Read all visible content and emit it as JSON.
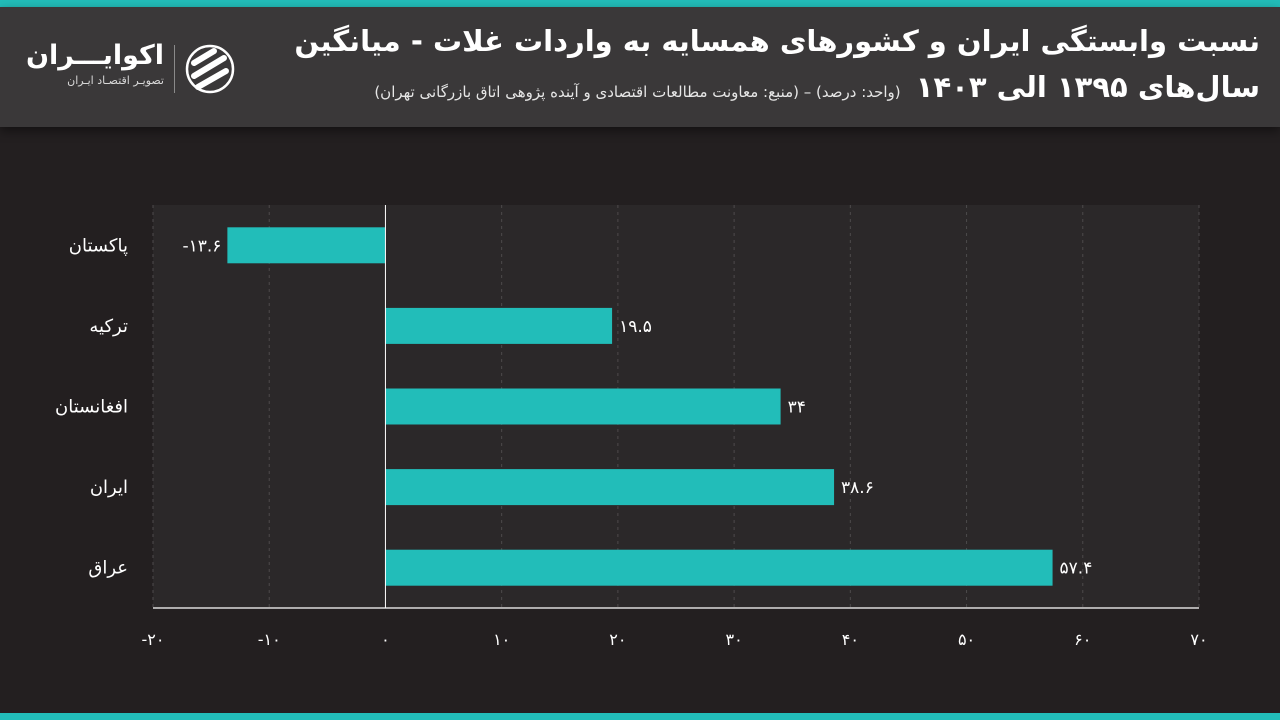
{
  "header": {
    "title_line1": "نسبت وابستگی ایران و کشورهای همسایه به واردات غلات - میانگین",
    "title_line2": "سال‌های ۱۳۹۵ الی ۱۴۰۳",
    "subtitle": "(واحد: درصد) – (منبع: معاونت مطالعات اقتصادی و آینده پژوهی اتاق بازرگانی تهران)"
  },
  "logo": {
    "name": "اکوایـــران",
    "tagline": "تصویـر اقتصـاد ایـران",
    "icon": "ecoiran-logo-icon"
  },
  "colors": {
    "bar": "#22bdb9",
    "background": "#231f20",
    "plot_background": "#2b2829",
    "header": "#3a3839",
    "grid": "#4d4a4b"
  },
  "chart_data": {
    "type": "bar",
    "orientation": "horizontal",
    "categories": [
      "پاکستان",
      "ترکیه",
      "افغانستان",
      "ایران",
      "عراق"
    ],
    "values": [
      -13.6,
      19.5,
      34,
      38.6,
      57.4
    ],
    "value_labels": [
      "-۱۳.۶",
      "۱۹.۵",
      "۳۴",
      "۳۸.۶",
      "۵۷.۴"
    ],
    "xlim": [
      -20,
      70
    ],
    "x_ticks": [
      -20,
      -10,
      0,
      10,
      20,
      30,
      40,
      50,
      60,
      70
    ],
    "x_tick_labels": [
      "-۲۰",
      "-۱۰",
      "۰",
      "۱۰",
      "۲۰",
      "۳۰",
      "۴۰",
      "۵۰",
      "۶۰",
      "۷۰"
    ],
    "grid": "vertical-dashed",
    "unit": "درصد"
  }
}
